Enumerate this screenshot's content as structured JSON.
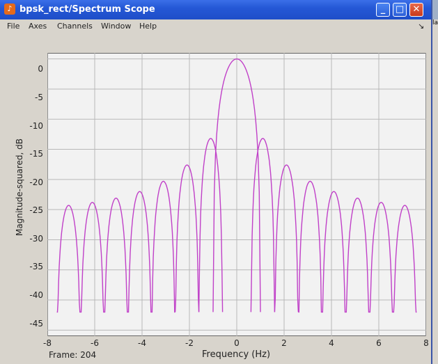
{
  "window": {
    "title": "bpsk_rect/Spectrum Scope",
    "minimize_glyph": "_",
    "maximize_glyph": "□",
    "close_glyph": "✕",
    "icon": "matlab-icon"
  },
  "menu": {
    "items": [
      "File",
      "Axes",
      "Channels",
      "Window",
      "Help"
    ],
    "overflow_glyph": "↘"
  },
  "side_strip_text": "la",
  "plot": {
    "ylabel": "Magnitude-squared, dB",
    "xlabel": "Frequency (Hz)",
    "frame_label": "Frame: 204",
    "yticks": [
      "0",
      "-5",
      "-10",
      "-15",
      "-20",
      "-25",
      "-30",
      "-35",
      "-40",
      "-45"
    ],
    "xticks": [
      "-8",
      "-6",
      "-4",
      "-2",
      "0",
      "2",
      "4",
      "6",
      "8"
    ],
    "line_color": "#c040c8",
    "background": "#f2f2f2",
    "grid_color": "#b8b8b8"
  },
  "chart_data": {
    "type": "line",
    "xlim": [
      -8,
      8
    ],
    "ylim": [
      -46,
      1
    ],
    "grid": true,
    "lobes": [
      {
        "center": 0,
        "peak": 0
      },
      {
        "center": 1.1,
        "peak": -13.2
      },
      {
        "center": -1.1,
        "peak": -13.2
      },
      {
        "center": 2.1,
        "peak": -17.6
      },
      {
        "center": -2.1,
        "peak": -17.6
      },
      {
        "center": 3.1,
        "peak": -20.3
      },
      {
        "center": -3.1,
        "peak": -20.3
      },
      {
        "center": 4.1,
        "peak": -22.0
      },
      {
        "center": -4.1,
        "peak": -22.0
      },
      {
        "center": 5.1,
        "peak": -23.1
      },
      {
        "center": -5.1,
        "peak": -23.1
      },
      {
        "center": 6.1,
        "peak": -23.8
      },
      {
        "center": -6.1,
        "peak": -23.8
      },
      {
        "center": 7.1,
        "peak": -24.3
      },
      {
        "center": -7.1,
        "peak": -24.3
      }
    ]
  }
}
